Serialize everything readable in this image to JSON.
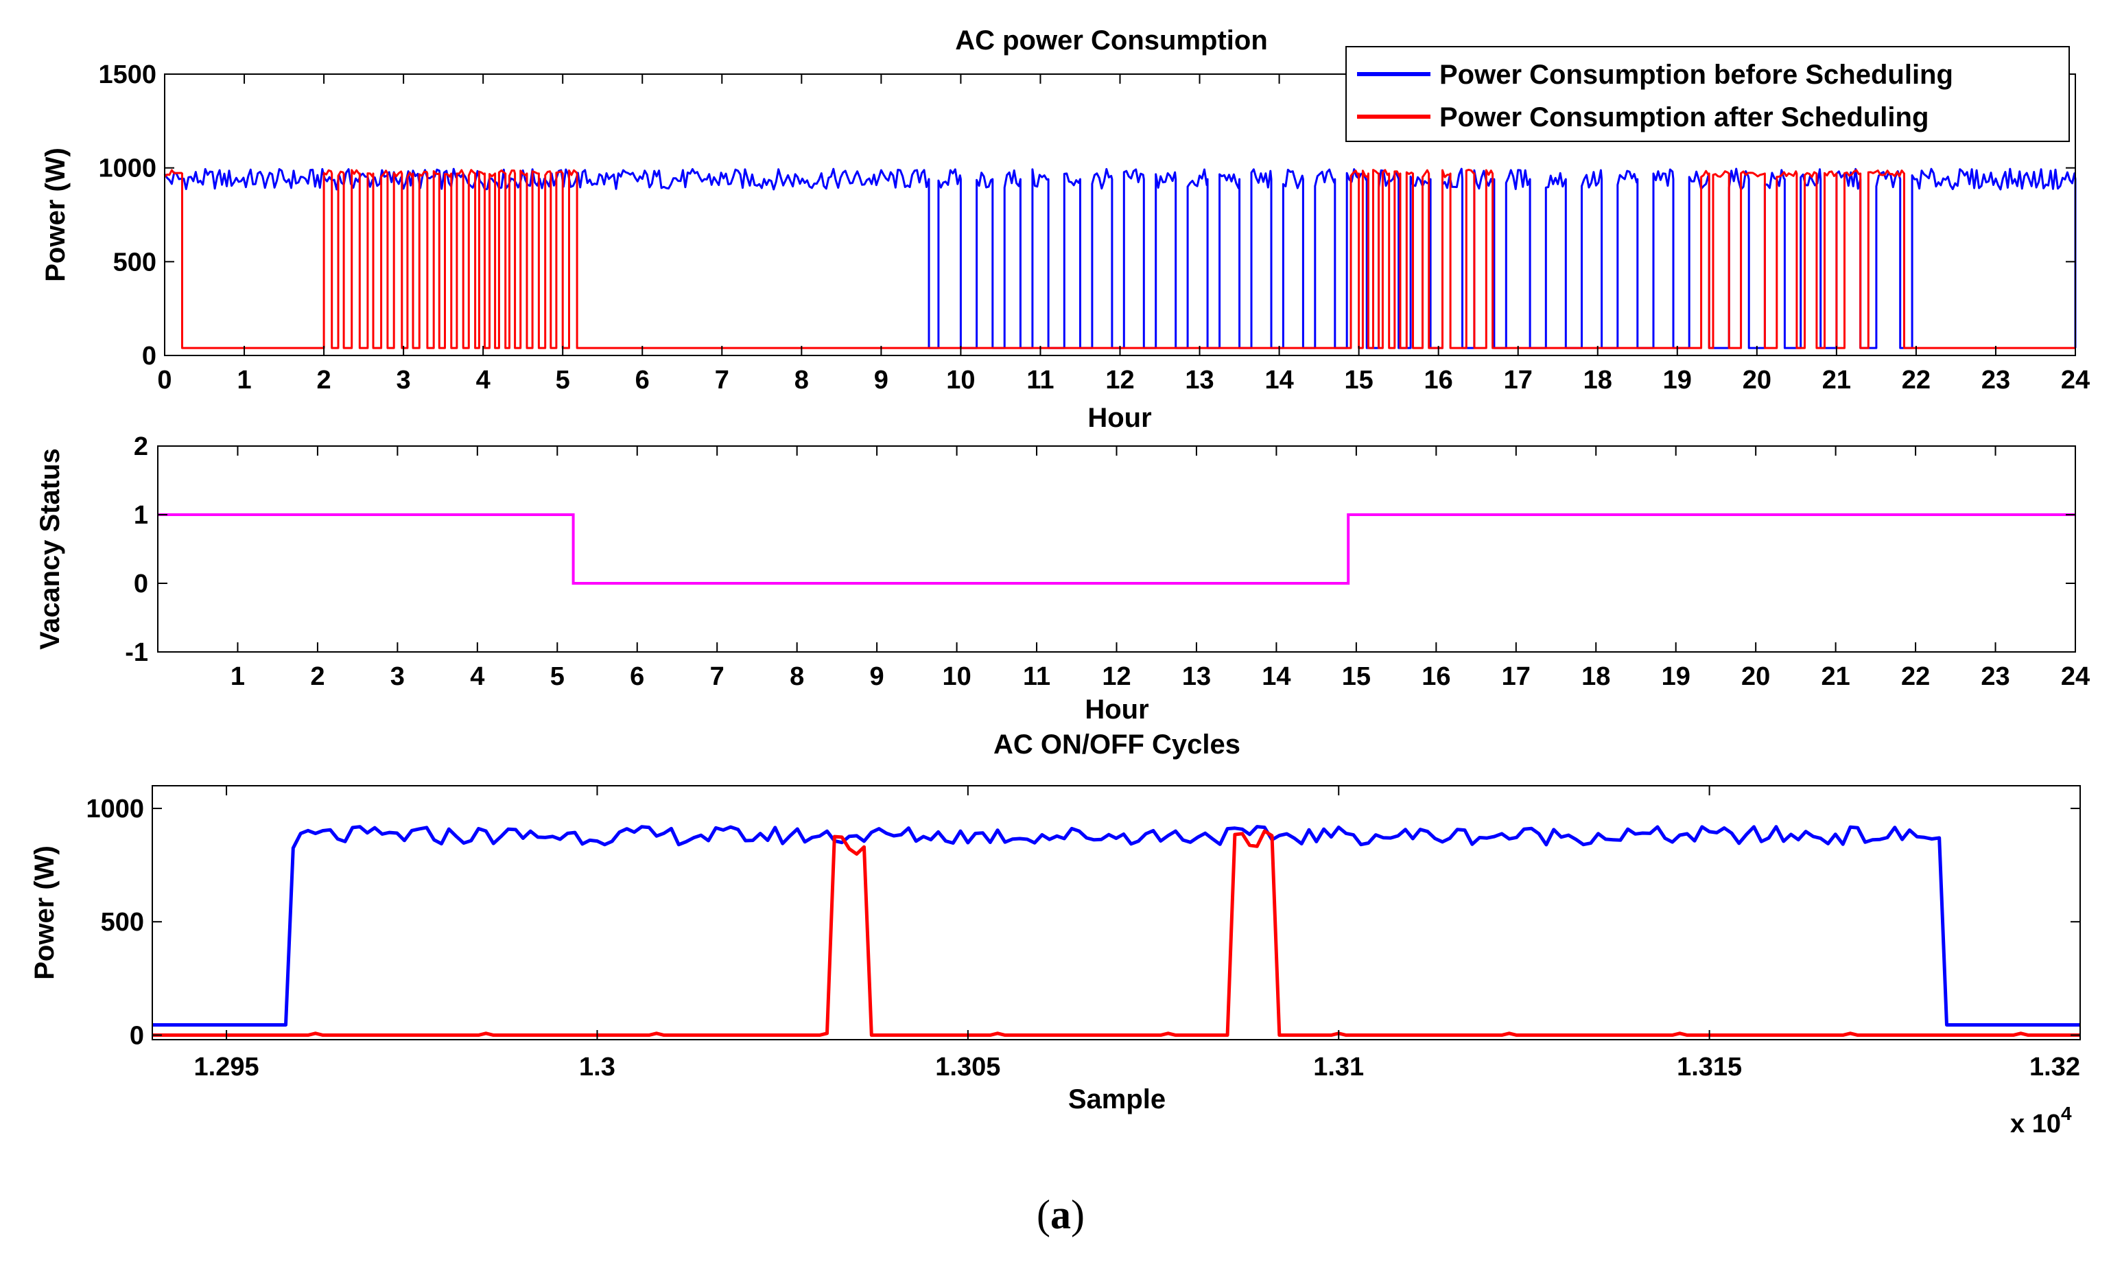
{
  "colors": {
    "before": "#0000ff",
    "after": "#ff0000",
    "vacancy": "#ff00ff",
    "axis": "#000000"
  },
  "chart_data": [
    {
      "type": "line",
      "title": "AC power Consumption",
      "xlabel": "Hour",
      "ylabel": "Power (W)",
      "xlim": [
        0,
        24
      ],
      "ylim": [
        0,
        1500
      ],
      "xticks": [
        0,
        1,
        2,
        3,
        4,
        5,
        6,
        7,
        8,
        9,
        10,
        11,
        12,
        13,
        14,
        15,
        16,
        17,
        18,
        19,
        20,
        21,
        22,
        23,
        24
      ],
      "yticks": [
        0,
        500,
        1000,
        1500
      ],
      "legend": "top-right",
      "series": [
        {
          "name": "Power Consumption before Scheduling",
          "color": "#0000ff",
          "idle_level": 40,
          "on_level": 940,
          "on_intervals": [
            [
              0,
              9.6
            ],
            [
              9.72,
              10.0
            ],
            [
              10.2,
              10.4
            ],
            [
              10.55,
              10.75
            ],
            [
              10.9,
              11.1
            ],
            [
              11.3,
              11.5
            ],
            [
              11.65,
              11.9
            ],
            [
              12.05,
              12.3
            ],
            [
              12.45,
              12.7
            ],
            [
              12.85,
              13.1
            ],
            [
              13.25,
              13.5
            ],
            [
              13.65,
              13.9
            ],
            [
              14.05,
              14.3
            ],
            [
              14.45,
              14.7
            ],
            [
              14.85,
              15.1
            ],
            [
              15.25,
              15.5
            ],
            [
              15.65,
              15.9
            ],
            [
              16.05,
              16.3
            ],
            [
              16.45,
              16.7
            ],
            [
              16.85,
              17.15
            ],
            [
              17.35,
              17.6
            ],
            [
              17.8,
              18.05
            ],
            [
              18.25,
              18.5
            ],
            [
              18.7,
              18.95
            ],
            [
              19.15,
              19.4
            ],
            [
              19.65,
              19.9
            ],
            [
              20.1,
              20.35
            ],
            [
              20.55,
              20.8
            ],
            [
              21.0,
              21.3
            ],
            [
              21.5,
              21.8
            ],
            [
              21.95,
              24
            ]
          ]
        },
        {
          "name": "Power Consumption after Scheduling",
          "color": "#ff0000",
          "idle_level": 40,
          "on_level": 970,
          "on_intervals": [
            [
              0,
              0.22
            ],
            [
              2.0,
              2.1
            ],
            [
              2.18,
              2.25
            ],
            [
              2.35,
              2.45
            ],
            [
              2.55,
              2.62
            ],
            [
              2.72,
              2.8
            ],
            [
              2.88,
              2.98
            ],
            [
              3.05,
              3.12
            ],
            [
              3.2,
              3.3
            ],
            [
              3.38,
              3.45
            ],
            [
              3.52,
              3.6
            ],
            [
              3.67,
              3.75
            ],
            [
              3.82,
              3.9
            ],
            [
              3.95,
              4.02
            ],
            [
              4.08,
              4.15
            ],
            [
              4.2,
              4.28
            ],
            [
              4.33,
              4.4
            ],
            [
              4.47,
              4.55
            ],
            [
              4.62,
              4.7
            ],
            [
              4.78,
              4.85
            ],
            [
              4.92,
              5.0
            ],
            [
              5.08,
              5.18
            ],
            [
              14.9,
              15.0
            ],
            [
              15.05,
              15.12
            ],
            [
              15.18,
              15.25
            ],
            [
              15.3,
              15.38
            ],
            [
              15.45,
              15.52
            ],
            [
              15.6,
              15.68
            ],
            [
              15.8,
              15.88
            ],
            [
              16.05,
              16.15
            ],
            [
              16.35,
              16.45
            ],
            [
              16.6,
              16.68
            ],
            [
              19.3,
              19.4
            ],
            [
              19.45,
              19.65
            ],
            [
              19.8,
              20.1
            ],
            [
              20.25,
              20.5
            ],
            [
              20.6,
              20.75
            ],
            [
              20.85,
              21.0
            ],
            [
              21.1,
              21.3
            ],
            [
              21.4,
              21.85
            ]
          ]
        }
      ]
    },
    {
      "type": "line",
      "title": "",
      "xlabel": "Hour",
      "ylabel": "Vacancy Status",
      "xlim": [
        0,
        24
      ],
      "ylim": [
        -1,
        2
      ],
      "xticks": [
        1,
        2,
        3,
        4,
        5,
        6,
        7,
        8,
        9,
        10,
        11,
        12,
        13,
        14,
        15,
        16,
        17,
        18,
        19,
        20,
        21,
        22,
        23,
        24
      ],
      "yticks": [
        -1,
        0,
        1,
        2
      ],
      "series": [
        {
          "name": "Vacancy Status",
          "color": "#ff00ff",
          "x": [
            0,
            5.2,
            5.2,
            14.9,
            14.9,
            24
          ],
          "y": [
            1,
            1,
            0,
            0,
            1,
            1
          ]
        }
      ]
    },
    {
      "type": "line",
      "title": "AC ON/OFF Cycles",
      "xlabel": "Sample",
      "ylabel": "Power (W)",
      "xlim": [
        12940,
        13200
      ],
      "ylim": [
        -20,
        1100
      ],
      "xticks": [
        12950,
        13000,
        13050,
        13100,
        13150,
        13200
      ],
      "xtick_labels": [
        "1.295",
        "1.3",
        "1.305",
        "1.31",
        "1.315",
        "1.32"
      ],
      "x_exponent": "x 10",
      "x_exponent_power": "4",
      "yticks": [
        0,
        500,
        1000
      ],
      "series": [
        {
          "name": "Power Consumption before Scheduling",
          "color": "#0000ff",
          "x": [
            12940,
            12958,
            12959,
            12960,
            13180,
            13181,
            13182,
            13200
          ],
          "y": [
            45,
            45,
            790,
            880,
            880,
            870,
            45,
            45
          ]
        },
        {
          "name": "Power Consumption after Scheduling",
          "color": "#ff0000",
          "x": [
            12940,
            13031,
            13032,
            13033,
            13035,
            13036,
            13037,
            13085,
            13086,
            13087,
            13090,
            13091,
            13092,
            13200
          ],
          "y": [
            0,
            0,
            840,
            840,
            830,
            830,
            0,
            0,
            880,
            870,
            870,
            880,
            0,
            0
          ]
        }
      ]
    }
  ],
  "caption": {
    "open": "(",
    "letter": "a",
    "close": ")"
  }
}
